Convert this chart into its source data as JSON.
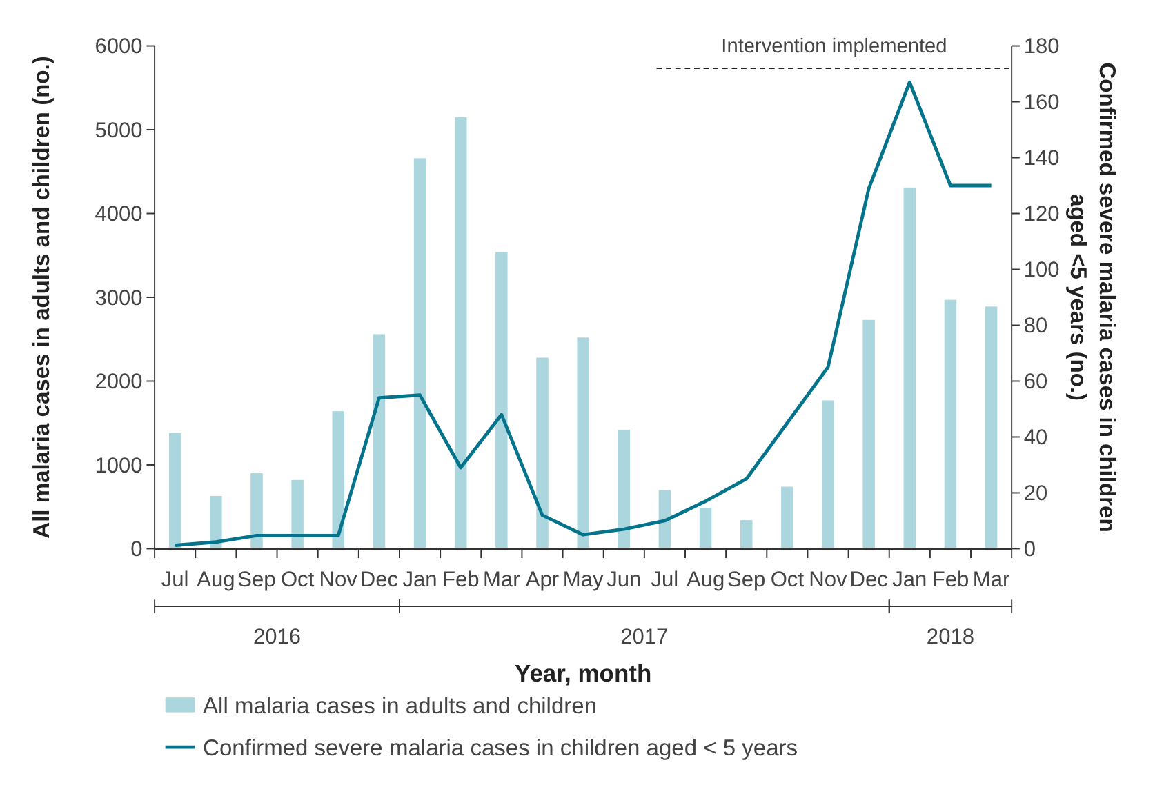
{
  "chart_data": {
    "type": "bar",
    "xlabel": "Year, month",
    "ylabel": "All malaria cases in adults and children (no.)",
    "y2label": "Confirmed severe malaria cases in children aged <5 years (no.)",
    "categories": [
      "Jul",
      "Aug",
      "Sep",
      "Oct",
      "Nov",
      "Dec",
      "Jan",
      "Feb",
      "Mar",
      "Apr",
      "May",
      "Jun",
      "Jul",
      "Aug",
      "Sep",
      "Oct",
      "Nov",
      "Dec",
      "Jan",
      "Feb",
      "Mar"
    ],
    "series": [
      {
        "name": "All malaria cases in adults and children",
        "color": "#abd6dd",
        "values": [
          1380,
          630,
          900,
          820,
          1640,
          2560,
          4660,
          5150,
          3540,
          2280,
          2520,
          1420,
          700,
          490,
          340,
          740,
          1770,
          2730,
          4310,
          2970,
          2890
        ]
      },
      {
        "name": "Confirmed severe malaria cases in children aged < 5 years",
        "type": "line",
        "axis": "y2",
        "color": "#04748c",
        "values": [
          1.2,
          2.4,
          4.7,
          4.7,
          4.7,
          54,
          55,
          29,
          48,
          12,
          5,
          7,
          10,
          17,
          25,
          45,
          65,
          129,
          167,
          130,
          130
        ]
      }
    ],
    "ylim": [
      0,
      6000
    ],
    "yticks": [
      0,
      1000,
      2000,
      3000,
      4000,
      5000,
      6000
    ],
    "y2lim": [
      0,
      180
    ],
    "y2ticks": [
      0,
      20,
      40,
      60,
      80,
      100,
      120,
      140,
      160,
      180
    ],
    "annotations": [
      "2016",
      "2017",
      "2018"
    ],
    "ref_lines": [
      {
        "axis": "y2",
        "value": 172,
        "label": "Intervention implemented",
        "line_style": "dashed",
        "color": "#222222"
      }
    ],
    "legend": "bottom",
    "grid": false
  }
}
